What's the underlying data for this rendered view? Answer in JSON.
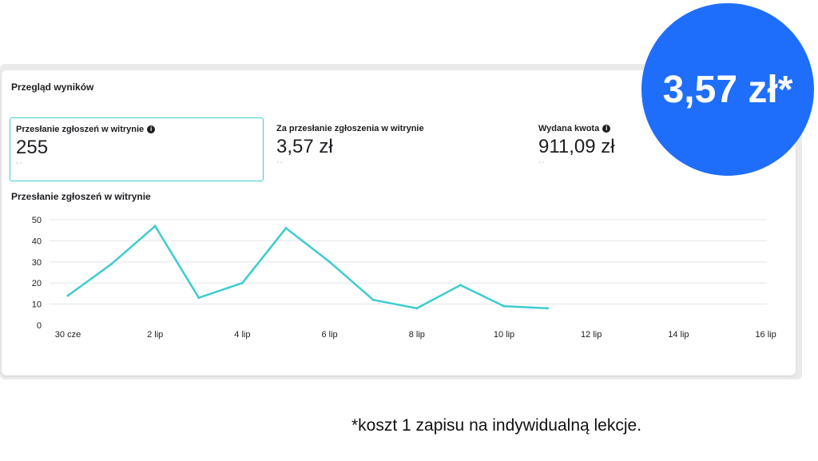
{
  "panel": {
    "title": "Przegląd wyników"
  },
  "metrics": [
    {
      "label": "Przesłanie zgłoszeń w witrynie",
      "value": "255",
      "dash": "--",
      "has_info": true,
      "selected": true
    },
    {
      "label": "Za przesłanie zgłoszenia w witrynie",
      "value": "3,57 zł",
      "dash": "--",
      "has_info": false,
      "selected": false
    },
    {
      "label": "Wydana kwota",
      "value": "911,09 zł",
      "dash": "--",
      "has_info": true,
      "selected": false
    }
  ],
  "info_icon": "info-icon",
  "badge": {
    "text": "3,57 zł*"
  },
  "footnote": "*koszt 1 zapisu na indywidualną lekcje.",
  "colors": {
    "line": "#3dcdd0",
    "badge": "#1f6efb",
    "grid": "#e4e6eb"
  },
  "chart_data": {
    "type": "line",
    "title": "Przesłanie zgłoszeń w witrynie",
    "xlabel": "",
    "ylabel": "",
    "ylim": [
      0,
      50
    ],
    "yticks": [
      0,
      10,
      20,
      30,
      40,
      50
    ],
    "xticks": [
      "30 cze",
      "2 lip",
      "4 lip",
      "6 lip",
      "8 lip",
      "10 lip",
      "12 lip",
      "14 lip",
      "16 lip"
    ],
    "x": [
      "30 cze",
      "1 lip",
      "2 lip",
      "3 lip",
      "4 lip",
      "5 lip",
      "6 lip",
      "7 lip",
      "8 lip",
      "9 lip",
      "10 lip",
      "11 lip"
    ],
    "values": [
      14,
      29,
      47,
      13,
      20,
      46,
      30,
      12,
      8,
      19,
      9,
      8
    ],
    "grid": true,
    "legend": "none"
  }
}
